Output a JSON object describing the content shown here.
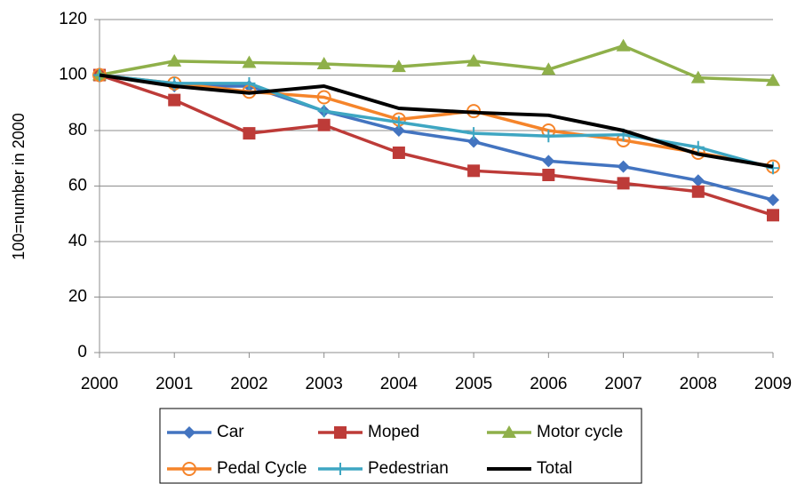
{
  "chart_data": {
    "type": "line",
    "y_label": "100=number in 2000",
    "x": [
      2000,
      2001,
      2002,
      2003,
      2004,
      2005,
      2006,
      2007,
      2008,
      2009
    ],
    "xlim": [
      2000,
      2009
    ],
    "xticks": [
      2000,
      2001,
      2002,
      2003,
      2004,
      2005,
      2006,
      2007,
      2008,
      2009
    ],
    "ylim": [
      0,
      120
    ],
    "yticks": [
      0,
      20,
      40,
      60,
      80,
      100,
      120
    ],
    "grid": true,
    "legend": "bottom",
    "series": [
      {
        "name": "Car",
        "color": "#4374c0",
        "marker": "diamond",
        "values": [
          100,
          96,
          96,
          87,
          80,
          76,
          69,
          67,
          62,
          55
        ]
      },
      {
        "name": "Moped",
        "color": "#bd3b38",
        "marker": "square",
        "values": [
          100,
          91,
          79,
          82,
          72,
          65.5,
          64,
          61,
          58,
          49.5
        ]
      },
      {
        "name": "Motor cycle",
        "color": "#8fb04a",
        "marker": "triangle",
        "values": [
          100,
          105,
          104.5,
          104,
          103,
          105,
          102,
          110.5,
          99,
          98
        ]
      },
      {
        "name": "Pedal Cycle",
        "color": "#f5842a",
        "marker": "circle",
        "values": [
          100,
          97,
          94,
          92,
          84,
          87,
          80,
          76.5,
          72,
          67
        ]
      },
      {
        "name": "Pedestrian",
        "color": "#3ea6c2",
        "marker": "plus",
        "values": [
          100,
          97,
          97,
          87,
          83,
          79,
          78,
          78.5,
          74,
          66.5
        ]
      },
      {
        "name": "Total",
        "color": "#000000",
        "marker": "none",
        "values": [
          100,
          96,
          93.5,
          96,
          88,
          86.5,
          85.5,
          80,
          71.5,
          67
        ]
      }
    ]
  }
}
